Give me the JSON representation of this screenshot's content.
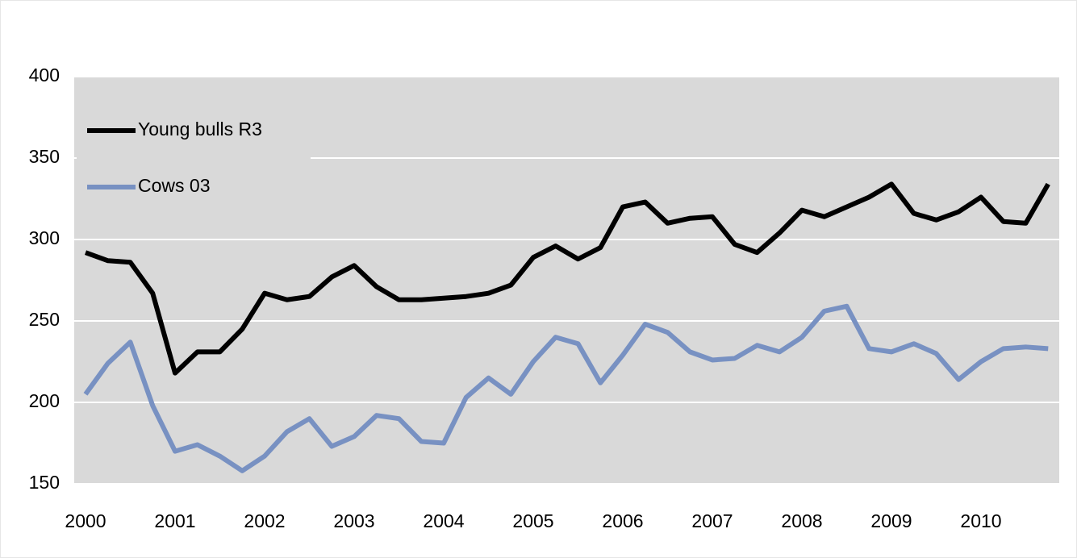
{
  "chart_data": {
    "type": "line",
    "categories": [
      "2000",
      null,
      null,
      null,
      "2001",
      null,
      null,
      null,
      "2002",
      null,
      null,
      null,
      "2003",
      null,
      null,
      null,
      "2004",
      null,
      null,
      null,
      "2005",
      null,
      null,
      null,
      "2006",
      null,
      null,
      null,
      "2007",
      null,
      null,
      null,
      "2008",
      null,
      null,
      null,
      "2009",
      null,
      null,
      null,
      "2010",
      null,
      null,
      null
    ],
    "series": [
      {
        "name": "Young bulls R3",
        "color": "#000000",
        "values": [
          292,
          287,
          286,
          267,
          218,
          231,
          231,
          245,
          267,
          263,
          265,
          277,
          284,
          271,
          263,
          263,
          264,
          265,
          267,
          272,
          289,
          296,
          288,
          295,
          320,
          323,
          310,
          313,
          314,
          297,
          292,
          304,
          318,
          314,
          320,
          326,
          334,
          316,
          312,
          317,
          326,
          311,
          310,
          334
        ]
      },
      {
        "name": "Cows 03",
        "color": "#7891c2",
        "values": [
          205,
          224,
          237,
          198,
          170,
          174,
          167,
          158,
          167,
          182,
          190,
          173,
          179,
          192,
          190,
          176,
          175,
          203,
          215,
          205,
          225,
          240,
          236,
          212,
          229,
          248,
          243,
          231,
          226,
          227,
          235,
          231,
          240,
          256,
          259,
          233,
          231,
          236,
          230,
          214,
          225,
          233,
          234,
          233
        ]
      }
    ],
    "ylim": [
      150,
      400
    ],
    "yticks": [
      150,
      200,
      250,
      300,
      350,
      400
    ],
    "grid": true,
    "legend": "top-left"
  }
}
